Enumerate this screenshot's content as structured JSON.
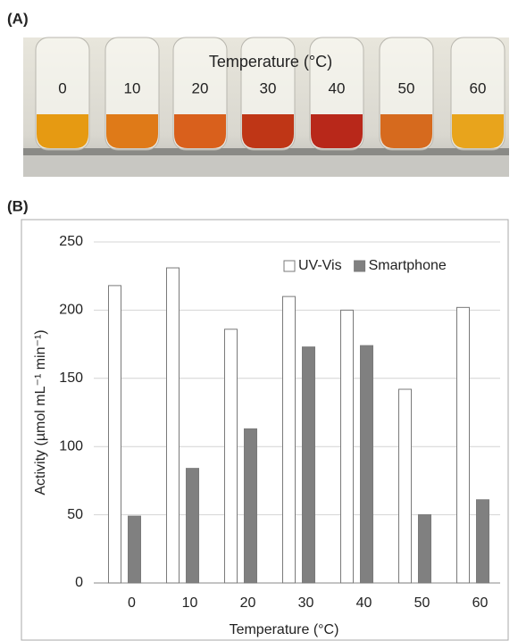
{
  "panel_a": {
    "label": "(A)",
    "title": "Temperature (°C)",
    "tube_labels": [
      "0",
      "10",
      "20",
      "30",
      "40",
      "50",
      "60"
    ]
  },
  "chart_data": {
    "type": "bar",
    "panel_label": "(B)",
    "x_label": "Temperature (°C)",
    "y_label": "Activity (µmol mL⁻¹ min⁻¹)",
    "categories": [
      "0",
      "10",
      "20",
      "30",
      "40",
      "50",
      "60"
    ],
    "series": [
      {
        "name": "UV-Vis",
        "color": "#ffffff",
        "values": [
          218,
          231,
          186,
          210,
          200,
          142,
          202
        ]
      },
      {
        "name": "Smartphone",
        "color": "#808080",
        "values": [
          49,
          84,
          113,
          173,
          174,
          50,
          61
        ]
      }
    ],
    "ylim": [
      0,
      250
    ],
    "yticks": [
      0,
      50,
      100,
      150,
      200,
      250
    ],
    "grid": true,
    "legend": "upper right"
  }
}
